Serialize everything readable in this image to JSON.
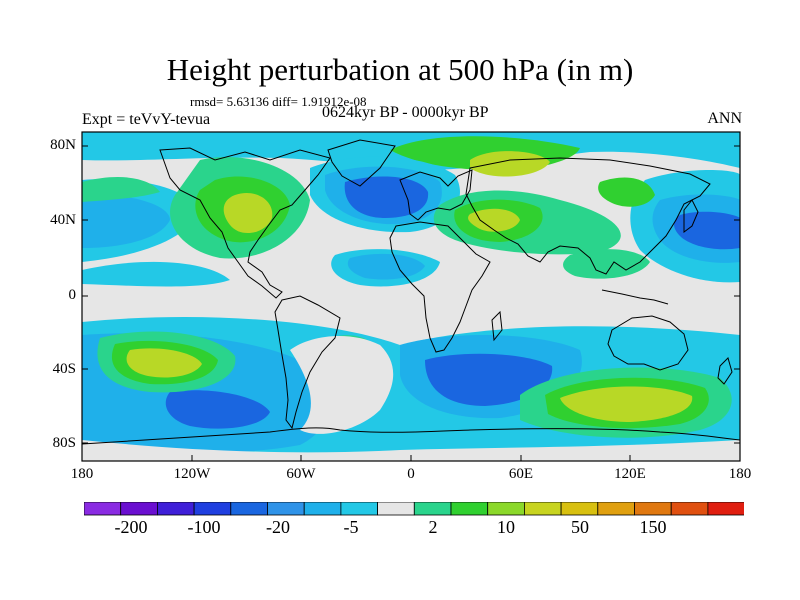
{
  "title": "Height perturbation at 500 hPa (in m)",
  "subtitle": {
    "stats": "rmsd= 5.63136 diff= 1.91912e-08",
    "experiment": "Expt = teVvY-tevua",
    "period": "0624kyr BP - 0000kyr BP",
    "season": "ANN"
  },
  "axes": {
    "lat_labels": [
      "80N",
      "40N",
      "0",
      "40S",
      "80S"
    ],
    "lon_labels": [
      "180",
      "120W",
      "60W",
      "0",
      "60E",
      "120E",
      "180"
    ]
  },
  "colorbar": {
    "colors": [
      "#8a2be2",
      "#6a0fd0",
      "#3f1fd8",
      "#1f3fe0",
      "#1a66e0",
      "#2f93e8",
      "#1fb0ea",
      "#23c8e6",
      "#e6e6e6",
      "#2ad48c",
      "#30d030",
      "#8bd82a",
      "#c8d420",
      "#d8c010",
      "#e0a010",
      "#e07810",
      "#e05010",
      "#e01e10"
    ],
    "labels": [
      "-200",
      "-100",
      "-20",
      "-5",
      "2",
      "10",
      "50",
      "150"
    ]
  },
  "map_legend": {
    "fill_levels": {
      "neg_weak": "#23c8e6",
      "neg_mid": "#1fb0ea",
      "neg_strong": "#1a66e0",
      "neutral": "#e6e6e6",
      "pos_weak": "#2ad48c",
      "pos_mid": "#30d030",
      "pos_strong": "#b8d826"
    }
  }
}
